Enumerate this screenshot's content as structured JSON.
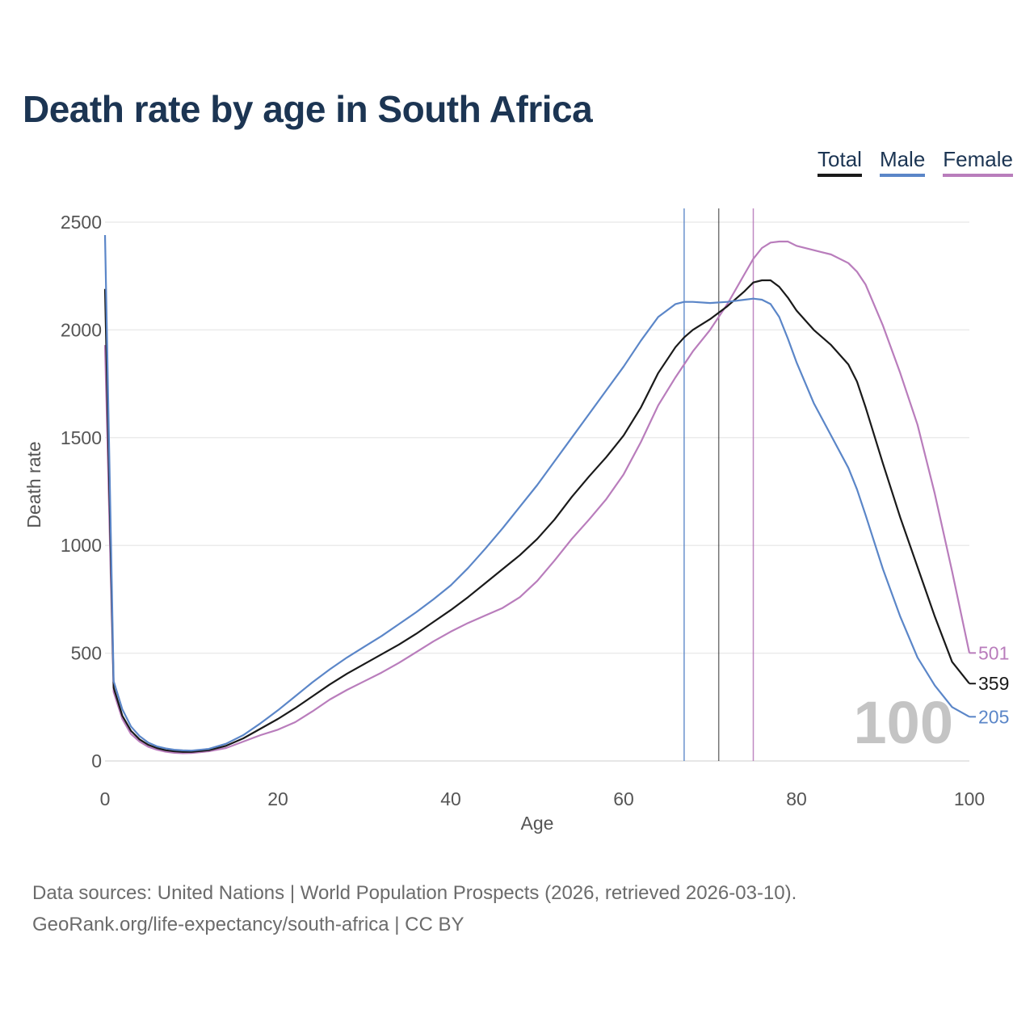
{
  "title": "Death rate by age in South Africa",
  "legend": [
    {
      "label": "Total",
      "color": "#1a1a1a"
    },
    {
      "label": "Male",
      "color": "#5b86c8"
    },
    {
      "label": "Female",
      "color": "#b97dbc"
    }
  ],
  "footer": {
    "line1": "Data sources: United Nations | World Population Prospects (2026, retrieved 2026-03-10).",
    "line2": "GeoRank.org/life-expectancy/south-africa | CC BY"
  },
  "chart_data": {
    "type": "line",
    "title": "Death rate by age in South Africa",
    "xlabel": "Age",
    "ylabel": "Death rate",
    "xlim": [
      0,
      100
    ],
    "ylim": [
      0,
      2500
    ],
    "xticks": [
      0,
      20,
      40,
      60,
      80,
      100
    ],
    "yticks": [
      0,
      500,
      1000,
      1500,
      2000,
      2500
    ],
    "year_watermark": "100",
    "end_labels": {
      "Female": "501",
      "Total": "359",
      "Male": "205"
    },
    "vertical_markers": [
      {
        "series": "Male",
        "x": 67.0
      },
      {
        "series": "Total",
        "x": 71.0
      },
      {
        "series": "Female",
        "x": 75.0
      }
    ],
    "x": [
      0,
      1,
      2,
      3,
      4,
      5,
      6,
      7,
      8,
      9,
      10,
      12,
      14,
      16,
      18,
      20,
      22,
      24,
      26,
      28,
      30,
      32,
      34,
      36,
      38,
      40,
      42,
      44,
      46,
      48,
      50,
      52,
      54,
      56,
      58,
      60,
      62,
      64,
      66,
      67,
      68,
      70,
      72,
      74,
      75,
      76,
      77,
      78,
      79,
      80,
      82,
      84,
      86,
      87,
      88,
      90,
      92,
      94,
      96,
      98,
      100
    ],
    "series": [
      {
        "name": "Total",
        "color": "#1a1a1a",
        "values": [
          2190,
          340,
          210,
          140,
          100,
          75,
          60,
          50,
          45,
          42,
          42,
          50,
          70,
          105,
          150,
          195,
          245,
          300,
          355,
          405,
          450,
          495,
          540,
          590,
          645,
          700,
          760,
          825,
          890,
          955,
          1030,
          1120,
          1225,
          1320,
          1410,
          1510,
          1640,
          1800,
          1920,
          1965,
          2000,
          2050,
          2110,
          2180,
          2220,
          2230,
          2230,
          2200,
          2150,
          2090,
          2000,
          1930,
          1840,
          1760,
          1640,
          1380,
          1130,
          900,
          670,
          460,
          359
        ]
      },
      {
        "name": "Male",
        "color": "#5b86c8",
        "values": [
          2440,
          370,
          240,
          160,
          115,
          85,
          68,
          58,
          52,
          49,
          48,
          56,
          80,
          120,
          175,
          235,
          300,
          365,
          425,
          480,
          530,
          580,
          635,
          690,
          750,
          815,
          895,
          985,
          1080,
          1180,
          1280,
          1390,
          1500,
          1610,
          1720,
          1830,
          1950,
          2060,
          2120,
          2130,
          2130,
          2125,
          2130,
          2140,
          2145,
          2140,
          2120,
          2060,
          1960,
          1850,
          1660,
          1510,
          1360,
          1260,
          1140,
          890,
          670,
          480,
          350,
          250,
          205
        ]
      },
      {
        "name": "Female",
        "color": "#b97dbc",
        "values": [
          1930,
          320,
          195,
          125,
          90,
          66,
          52,
          43,
          38,
          36,
          37,
          45,
          60,
          90,
          120,
          145,
          180,
          230,
          285,
          330,
          370,
          410,
          455,
          505,
          555,
          600,
          640,
          675,
          710,
          760,
          835,
          930,
          1030,
          1120,
          1215,
          1330,
          1480,
          1650,
          1780,
          1840,
          1900,
          2000,
          2120,
          2260,
          2330,
          2380,
          2405,
          2410,
          2410,
          2390,
          2370,
          2350,
          2310,
          2270,
          2210,
          2020,
          1800,
          1560,
          1240,
          880,
          501
        ]
      }
    ]
  }
}
